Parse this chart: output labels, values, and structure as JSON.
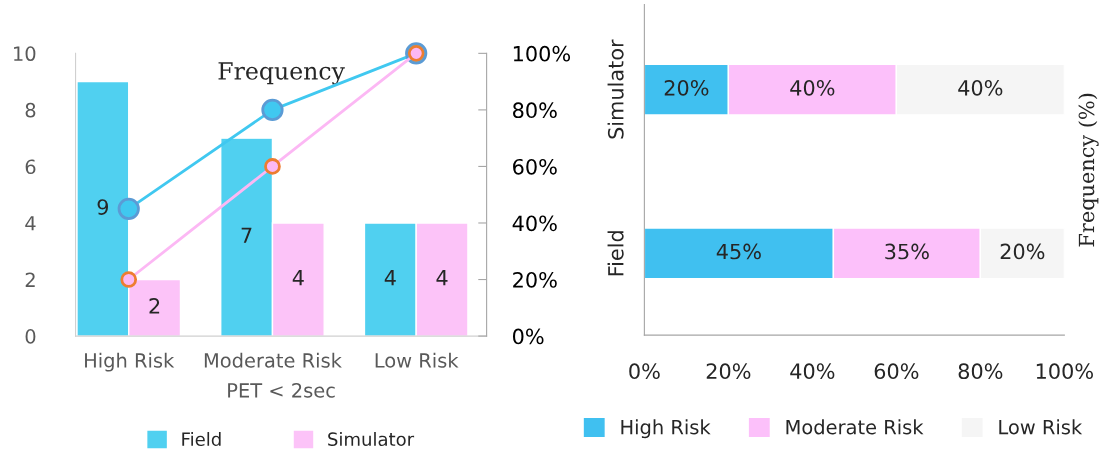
{
  "chart_data": [
    {
      "type": "bar",
      "title": "Frequency",
      "xlabel": "PET < 2sec",
      "categories": [
        "High Risk",
        "Moderate Risk",
        "Low Risk"
      ],
      "series": [
        {
          "name": "Field",
          "color": "#50d0f0",
          "values": [
            9,
            7,
            4
          ],
          "value_labels": [
            "9",
            "7",
            "4"
          ]
        },
        {
          "name": "Simulator",
          "color": "#fcc3f8",
          "values": [
            2,
            4,
            4
          ],
          "value_labels": [
            "2",
            "4",
            "4"
          ]
        },
        {
          "type": "line",
          "axis": "y2",
          "color": "#40c8f0",
          "values": [
            45,
            80,
            100
          ]
        },
        {
          "type": "line",
          "axis": "y2",
          "color": "#fcb8f4",
          "values": [
            20,
            60,
            100
          ]
        }
      ],
      "ylim": [
        0,
        10
      ],
      "yticks": [
        0,
        2,
        4,
        6,
        8,
        10
      ],
      "y2lim": [
        0,
        100
      ],
      "y2ticks": [
        {
          "value": 0,
          "label": "0%"
        },
        {
          "value": 20,
          "label": "20%"
        },
        {
          "value": 40,
          "label": "40%"
        },
        {
          "value": 60,
          "label": "60%"
        },
        {
          "value": 80,
          "label": "80%"
        },
        {
          "value": 100,
          "label": "100%"
        }
      ],
      "marker": "circle",
      "grid": false,
      "legend": "bottom"
    },
    {
      "type": "bar",
      "orientation": "horizontal",
      "stacked": true,
      "ylabel": "Frequency (%)",
      "categories": [
        "Simulator",
        "Field"
      ],
      "series": [
        {
          "name": "High Risk",
          "color": "#40c0f0",
          "values": [
            20,
            45
          ],
          "value_labels": [
            "20%",
            "45%"
          ]
        },
        {
          "name": "Moderate Risk",
          "color": "#fcc0fa",
          "values": [
            40,
            35
          ],
          "value_labels": [
            "40%",
            "35%"
          ]
        },
        {
          "name": "Low Risk",
          "color": "#f5f5f5",
          "values": [
            40,
            20
          ],
          "value_labels": [
            "40%",
            "20%"
          ]
        }
      ],
      "xlim": [
        0,
        100
      ],
      "xticks": [
        {
          "value": 0,
          "label": "0%"
        },
        {
          "value": 20,
          "label": "20%"
        },
        {
          "value": 40,
          "label": "40%"
        },
        {
          "value": 60,
          "label": "60%"
        },
        {
          "value": 80,
          "label": "80%"
        },
        {
          "value": 100,
          "label": "100%"
        }
      ],
      "grid": false,
      "legend": "bottom"
    }
  ]
}
